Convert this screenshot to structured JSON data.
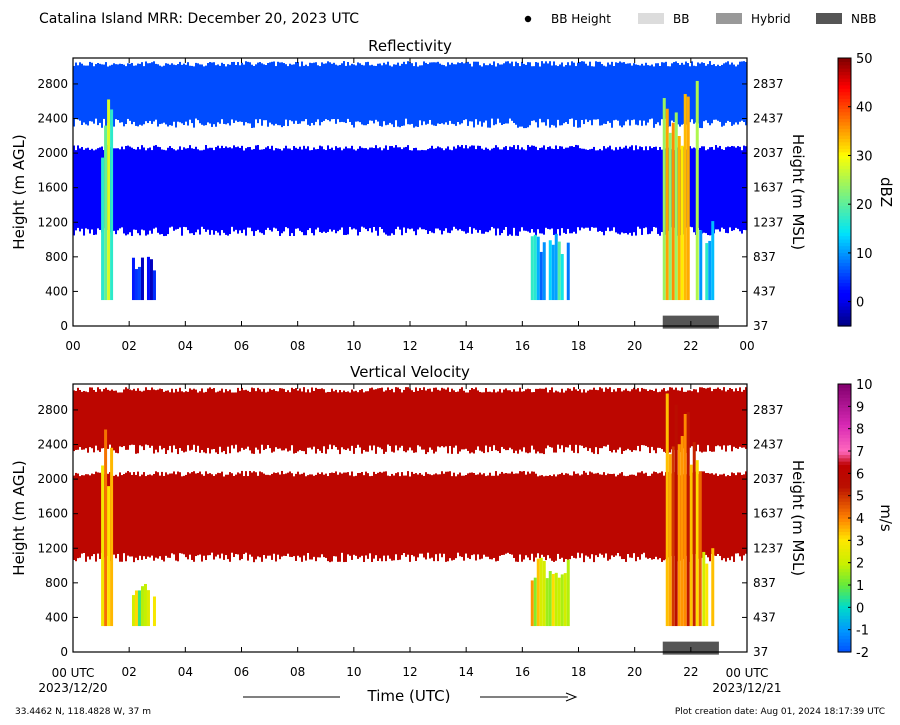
{
  "header": {
    "title": "Catalina Island MRR:  December 20, 2023 UTC",
    "legend": [
      {
        "label": "BB Height",
        "kind": "dot",
        "color": "#000000"
      },
      {
        "label": "BB",
        "kind": "swatch",
        "color": "#dcdcdc"
      },
      {
        "label": "Hybrid",
        "kind": "swatch",
        "color": "#999999"
      },
      {
        "label": "NBB",
        "kind": "swatch",
        "color": "#555555"
      }
    ]
  },
  "footer": {
    "location": "33.4462 N, 118.4828 W, 37 m",
    "creation": "Plot creation date: Aug 01, 2024 18:17:39 UTC",
    "xlabel": "Time (UTC)",
    "start_label": "00 UTC",
    "start_date": "2023/12/20",
    "end_label": "00 UTC",
    "end_date": "2023/12/21"
  },
  "chart_data": [
    {
      "type": "heatmap",
      "title": "Reflectivity",
      "xlabel": "",
      "ylabel": "Height (m AGL)",
      "ylabel_right": "Height (m MSL)",
      "xlim": [
        0,
        24
      ],
      "ylim": [
        0,
        3100
      ],
      "x_ticks": [
        "00",
        "02",
        "04",
        "06",
        "08",
        "10",
        "12",
        "14",
        "16",
        "18",
        "20",
        "22",
        "00"
      ],
      "y_ticks_left": [
        0,
        400,
        800,
        1200,
        1600,
        2000,
        2400,
        2800
      ],
      "y_ticks_right": [
        37,
        437,
        837,
        1237,
        1637,
        2037,
        2437,
        2837
      ],
      "colorbar": {
        "label": "dBZ",
        "range": [
          -5,
          50
        ],
        "ticks": [
          0,
          10,
          20,
          30,
          40,
          50
        ]
      },
      "bands": [
        {
          "y0": 1150,
          "y1": 2030,
          "level": 1
        },
        {
          "y0": 2400,
          "y1": 3000,
          "level": 6
        }
      ],
      "events": [
        {
          "t0": 1.0,
          "t1": 1.4,
          "y0": 300,
          "y1": 2700,
          "level": 22
        },
        {
          "t0": 2.1,
          "t1": 2.9,
          "y0": 300,
          "y1": 800,
          "level": 4
        },
        {
          "t0": 16.3,
          "t1": 17.6,
          "y0": 300,
          "y1": 1100,
          "level": 14
        },
        {
          "t0": 21.0,
          "t1": 22.3,
          "y0": 300,
          "y1": 3000,
          "level": 30
        },
        {
          "t0": 22.3,
          "t1": 22.8,
          "y0": 300,
          "y1": 1300,
          "level": 12
        }
      ],
      "classification": [
        {
          "t0": 21.0,
          "t1": 23.0,
          "type": "NBB"
        }
      ]
    },
    {
      "type": "heatmap",
      "title": "Vertical Velocity",
      "xlabel": "",
      "ylabel": "Height (m AGL)",
      "ylabel_right": "Height (m MSL)",
      "xlim": [
        0,
        24
      ],
      "ylim": [
        0,
        3100
      ],
      "x_ticks": [
        "00",
        "02",
        "04",
        "06",
        "08",
        "10",
        "12",
        "14",
        "16",
        "18",
        "20",
        "22",
        "00"
      ],
      "y_ticks_left": [
        0,
        400,
        800,
        1200,
        1600,
        2000,
        2400,
        2800
      ],
      "y_ticks_right": [
        37,
        437,
        837,
        1237,
        1637,
        2037,
        2437,
        2837
      ],
      "colorbar": {
        "label": "m/s",
        "range": [
          -2,
          10
        ],
        "ticks": [
          -2,
          -1,
          0,
          1,
          2,
          3,
          4,
          5,
          6,
          7,
          8,
          9,
          10
        ]
      },
      "bands": [
        {
          "y0": 1150,
          "y1": 2030,
          "level": 6
        },
        {
          "y0": 2400,
          "y1": 3000,
          "level": 6
        }
      ],
      "events": [
        {
          "t0": 1.0,
          "t1": 1.4,
          "y0": 300,
          "y1": 2700,
          "level": 3.3
        },
        {
          "t0": 2.1,
          "t1": 2.9,
          "y0": 300,
          "y1": 800,
          "level": 1.8
        },
        {
          "t0": 16.3,
          "t1": 17.6,
          "y0": 300,
          "y1": 1100,
          "level": 2.5
        },
        {
          "t0": 21.0,
          "t1": 22.3,
          "y0": 300,
          "y1": 3000,
          "level": 4.5
        },
        {
          "t0": 22.3,
          "t1": 22.8,
          "y0": 300,
          "y1": 1300,
          "level": 2.8
        }
      ],
      "classification": [
        {
          "t0": 21.0,
          "t1": 23.0,
          "type": "NBB"
        }
      ]
    }
  ]
}
